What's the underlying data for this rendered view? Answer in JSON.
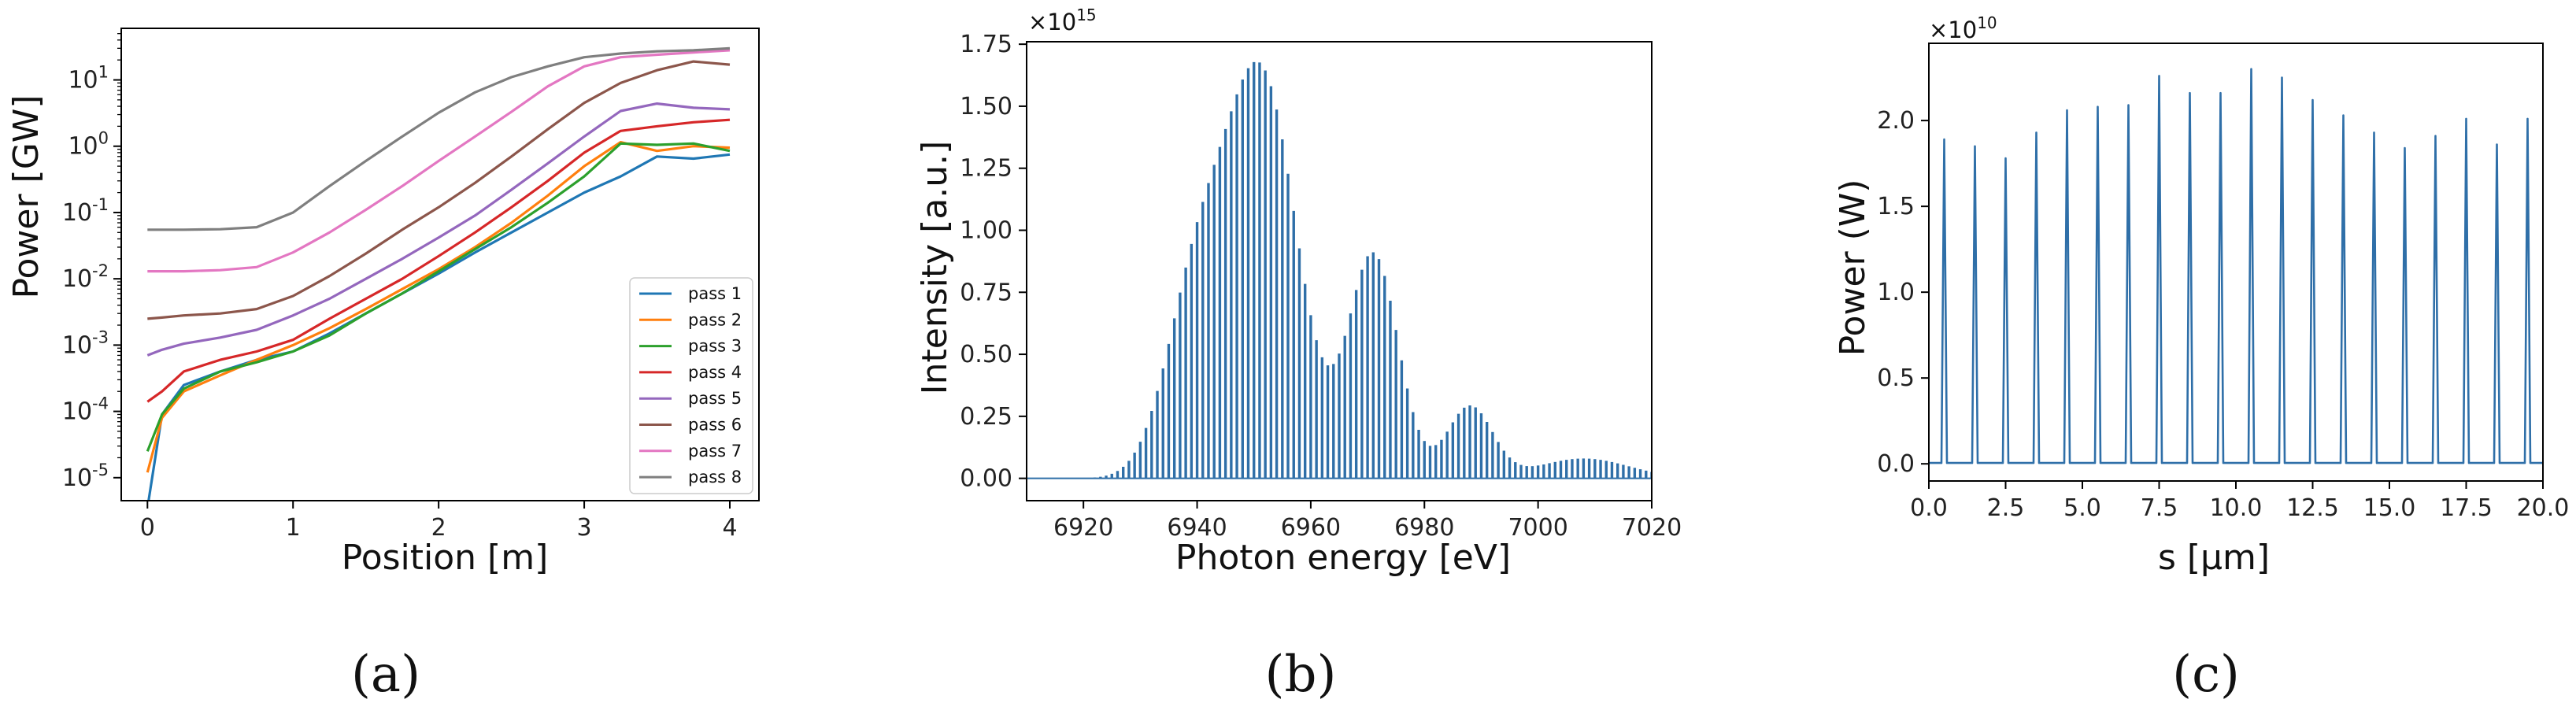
{
  "colors": {
    "pass1": "#1f77b4",
    "pass2": "#ff7f0e",
    "pass3": "#2ca02c",
    "pass4": "#d62728",
    "pass5": "#9467bd",
    "pass6": "#8c564b",
    "pass7": "#e377c2",
    "pass8": "#7f7f7f",
    "spectrum": "#2f6fa8",
    "frame": "#000000"
  },
  "chart_data": [
    {
      "type": "line",
      "panel_label": "(a)",
      "xlabel": "Position [m]",
      "ylabel": "Power [GW]",
      "yscale": "log",
      "xlim": [
        -0.18,
        4.2
      ],
      "ylim": [
        4.5e-06,
        60
      ],
      "xticks": [
        0,
        1,
        2,
        3,
        4
      ],
      "xtick_labels": [
        "0",
        "1",
        "2",
        "3",
        "4"
      ],
      "yticks_exp": [
        -5,
        -4,
        -3,
        -2,
        -1,
        0,
        1
      ],
      "legend_position": "lower-right",
      "x": [
        0,
        0.1,
        0.25,
        0.5,
        0.75,
        1,
        1.25,
        1.5,
        1.75,
        2,
        2.25,
        2.5,
        2.75,
        3,
        3.25,
        3.5,
        3.75,
        4
      ],
      "series": [
        {
          "name": "pass 1",
          "values": [
            3.5e-06,
            9e-05,
            0.00025,
            0.0004,
            0.0006,
            0.0008,
            0.0015,
            0.003,
            0.006,
            0.012,
            0.025,
            0.05,
            0.1,
            0.2,
            0.35,
            0.7,
            0.65,
            0.75
          ]
        },
        {
          "name": "pass 2",
          "values": [
            1.2e-05,
            8e-05,
            0.0002,
            0.00035,
            0.0006,
            0.001,
            0.0018,
            0.0035,
            0.007,
            0.014,
            0.03,
            0.07,
            0.18,
            0.5,
            1.15,
            0.85,
            1.0,
            0.95
          ]
        },
        {
          "name": "pass 3",
          "values": [
            2.5e-05,
            9e-05,
            0.00022,
            0.0004,
            0.00055,
            0.0008,
            0.0014,
            0.003,
            0.006,
            0.013,
            0.028,
            0.06,
            0.14,
            0.35,
            1.1,
            1.05,
            1.1,
            0.85
          ]
        },
        {
          "name": "pass 4",
          "values": [
            0.00014,
            0.0002,
            0.0004,
            0.0006,
            0.0008,
            0.0012,
            0.0025,
            0.005,
            0.01,
            0.022,
            0.05,
            0.12,
            0.3,
            0.8,
            1.7,
            2.0,
            2.3,
            2.5
          ]
        },
        {
          "name": "pass 5",
          "values": [
            0.0007,
            0.00085,
            0.00105,
            0.0013,
            0.0017,
            0.0028,
            0.005,
            0.01,
            0.02,
            0.042,
            0.09,
            0.22,
            0.55,
            1.4,
            3.4,
            4.4,
            3.8,
            3.6
          ]
        },
        {
          "name": "pass 6",
          "values": [
            0.0025,
            0.0026,
            0.0028,
            0.003,
            0.0035,
            0.0055,
            0.011,
            0.024,
            0.055,
            0.12,
            0.28,
            0.7,
            1.8,
            4.5,
            9,
            14,
            19,
            17
          ]
        },
        {
          "name": "pass 7",
          "values": [
            0.013,
            0.013,
            0.013,
            0.0135,
            0.015,
            0.025,
            0.05,
            0.11,
            0.25,
            0.6,
            1.4,
            3.3,
            8,
            16,
            22,
            24,
            26,
            28
          ]
        },
        {
          "name": "pass 8",
          "values": [
            0.055,
            0.055,
            0.055,
            0.056,
            0.06,
            0.1,
            0.25,
            0.6,
            1.4,
            3.2,
            6.5,
            11,
            16,
            22,
            25,
            27,
            28,
            30
          ]
        }
      ]
    },
    {
      "type": "bar",
      "panel_label": "(b)",
      "xlabel": "Photon energy [eV]",
      "ylabel": "Intensity [a.u.]",
      "offset_text": "×10",
      "offset_exponent": "15",
      "xlim": [
        6910,
        7020
      ],
      "ylim": [
        -0.09,
        1.76
      ],
      "xticks": [
        6920,
        6940,
        6960,
        6980,
        7000,
        7020
      ],
      "xtick_labels": [
        "6920",
        "6940",
        "6960",
        "6980",
        "7000",
        "7020"
      ],
      "yticks": [
        0,
        0.25,
        0.5,
        0.75,
        1.0,
        1.25,
        1.5,
        1.75
      ],
      "ytick_labels": [
        "0.00",
        "0.25",
        "0.50",
        "0.75",
        "1.00",
        "1.25",
        "1.50",
        "1.75"
      ],
      "spike_spacing_eV": 1.0,
      "envelope": [
        {
          "center": 6951.5,
          "height": 1.58,
          "sigma": 6.2
        },
        {
          "center": 6940,
          "height": 0.75,
          "sigma": 5.5
        },
        {
          "center": 6971,
          "height": 0.9,
          "sigma": 4.4
        },
        {
          "center": 6988,
          "height": 0.29,
          "sigma": 4.0
        },
        {
          "center": 7008,
          "height": 0.08,
          "sigma": 8.0
        }
      ]
    },
    {
      "type": "line",
      "panel_label": "(c)",
      "xlabel": "s [μm]",
      "ylabel": "Power (W)",
      "offset_text": "×10",
      "offset_exponent": "10",
      "xlim": [
        0,
        20
      ],
      "ylim": [
        -0.1,
        2.45
      ],
      "xticks": [
        0,
        2.5,
        5,
        7.5,
        10,
        12.5,
        15,
        17.5,
        20
      ],
      "xtick_labels": [
        "0.0",
        "2.5",
        "5.0",
        "7.5",
        "10.0",
        "12.5",
        "15.0",
        "17.5",
        "20.0"
      ],
      "yticks": [
        0,
        0.5,
        1.0,
        1.5,
        2.0
      ],
      "ytick_labels": [
        "0.0",
        "0.5",
        "1.0",
        "1.5",
        "2.0"
      ],
      "peak_positions": [
        0.5,
        1.5,
        2.5,
        3.5,
        4.5,
        5.5,
        6.5,
        7.5,
        8.5,
        9.5,
        10.5,
        11.5,
        12.5,
        13.5,
        14.5,
        15.5,
        16.5,
        17.5,
        18.5,
        19.5
      ],
      "peak_values": [
        1.89,
        1.85,
        1.78,
        1.93,
        2.06,
        2.08,
        2.09,
        2.26,
        2.16,
        2.16,
        2.3,
        2.25,
        2.12,
        2.03,
        1.93,
        1.84,
        1.91,
        2.01,
        1.86,
        2.01
      ]
    }
  ]
}
